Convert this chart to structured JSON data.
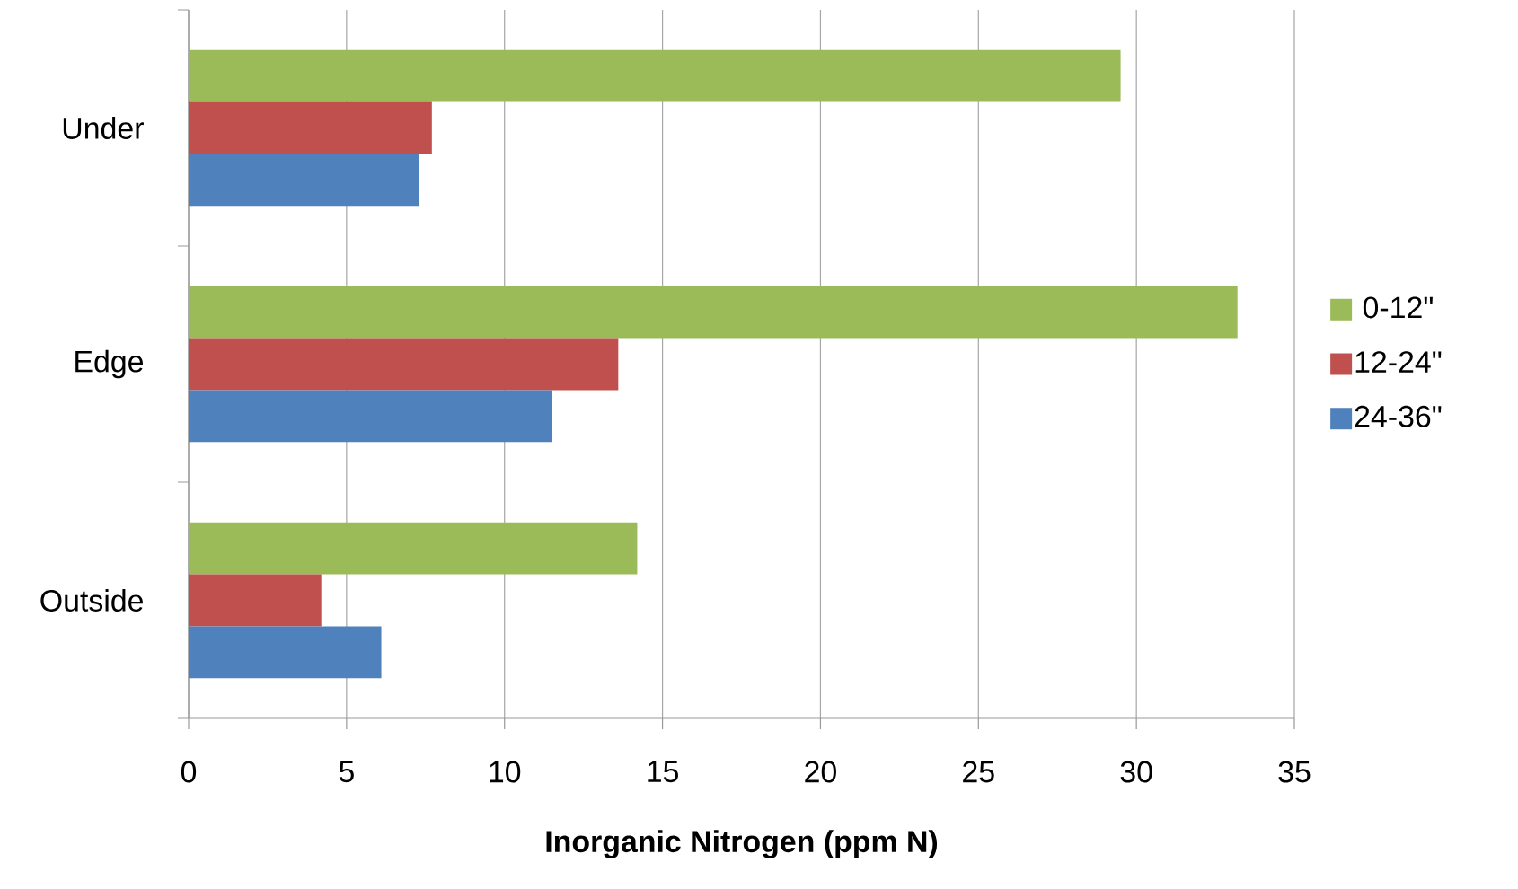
{
  "chart_data": {
    "type": "bar",
    "orientation": "horizontal",
    "xlabel": "Inorganic Nitrogen (ppm N)",
    "categories": [
      "Under",
      "Edge",
      "Outside"
    ],
    "series": [
      {
        "name": "0-12\"",
        "color": "#9bbb59",
        "values": [
          29.5,
          33.2,
          14.2
        ]
      },
      {
        "name": "12-24\"",
        "color": "#c0504d",
        "values": [
          7.7,
          13.6,
          4.2
        ]
      },
      {
        "name": "24-36\"",
        "color": "#4f81bd",
        "values": [
          7.3,
          11.5,
          6.1
        ]
      }
    ],
    "xlim": [
      0,
      35
    ],
    "xticks": [
      0,
      5,
      10,
      15,
      20,
      25,
      30,
      35
    ],
    "grid": "x",
    "legend": "right"
  }
}
